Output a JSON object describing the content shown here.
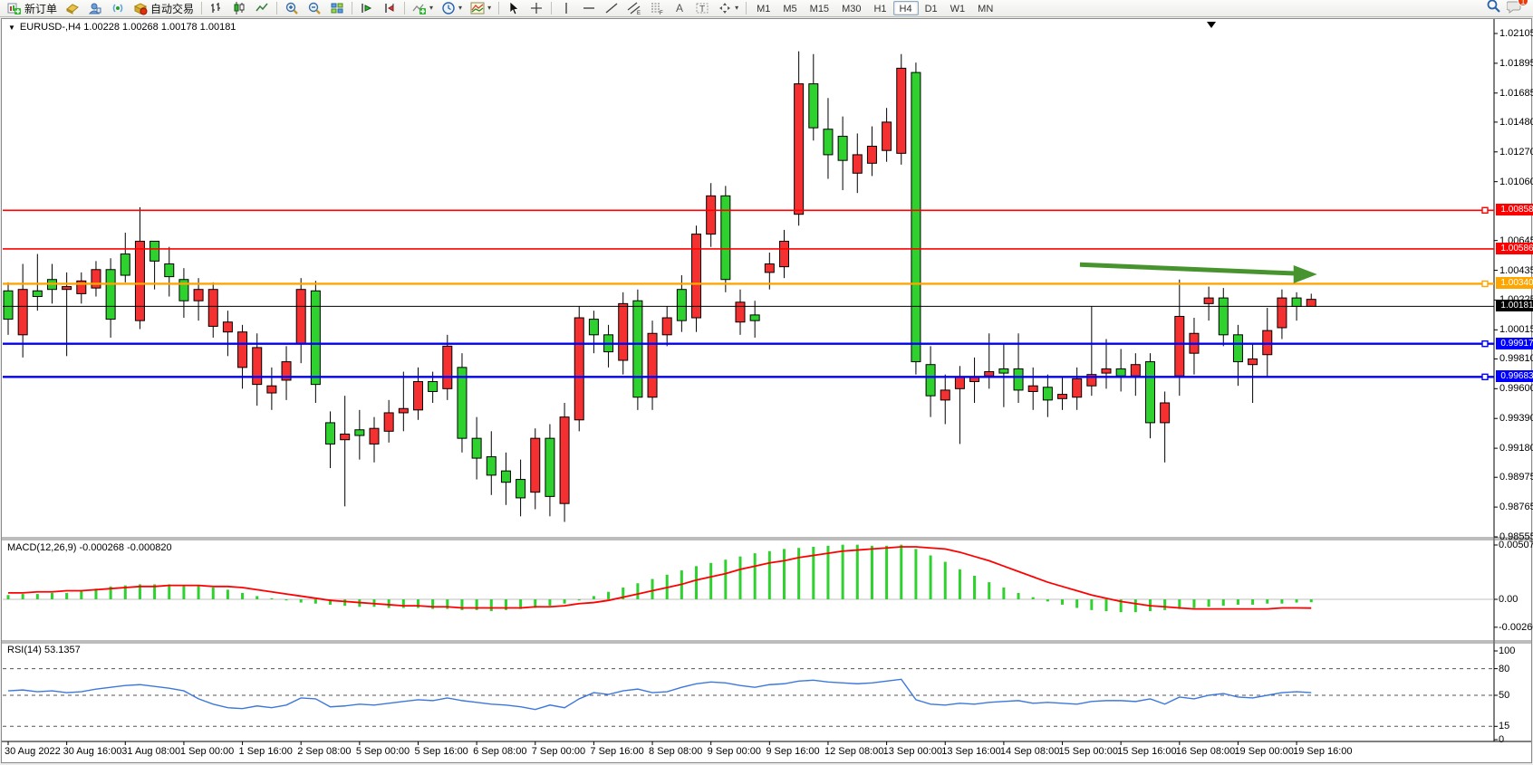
{
  "toolbar": {
    "new_order_label": "新订单",
    "autotrading_label": "自动交易",
    "notification_count": "1",
    "timeframes": [
      "M1",
      "M5",
      "M15",
      "M30",
      "H1",
      "H4",
      "D1",
      "W1",
      "MN"
    ],
    "active_timeframe": "H4"
  },
  "chart": {
    "title": "EURUSD-,H4  1.00228 1.00268 1.00178 1.00181",
    "symbol": "EURUSD-",
    "timeframe": "H4"
  },
  "price_axis": {
    "ticks": [
      "1.02105",
      "1.01895",
      "1.01685",
      "1.01480",
      "1.01270",
      "1.01060",
      "1.00645",
      "1.00435",
      "1.00225",
      "1.00015",
      "0.99810",
      "0.99600",
      "0.99390",
      "0.99180",
      "0.98975",
      "0.98765",
      "0.98555"
    ]
  },
  "levels": [
    {
      "value": "1.00858",
      "price": 1.00858,
      "color": "#ff0000",
      "kind": "resistance",
      "handle": true
    },
    {
      "value": "1.00586",
      "price": 1.00586,
      "color": "#ff0000",
      "kind": "resistance",
      "handle": false
    },
    {
      "value": "1.00340",
      "price": 1.0034,
      "color": "#ffa500",
      "kind": "pivot",
      "handle": true
    },
    {
      "value": "1.00181",
      "price": 1.00181,
      "color": "#000000",
      "kind": "bid",
      "handle": false
    },
    {
      "value": "0.99917",
      "price": 0.99917,
      "color": "#0000ff",
      "kind": "support",
      "handle": true
    },
    {
      "value": "0.99683",
      "price": 0.99683,
      "color": "#0000ff",
      "kind": "support",
      "handle": true
    }
  ],
  "chart_data": {
    "type": "candlestick",
    "title": "EURUSD- H4",
    "current_bar": {
      "open": "1.00228",
      "high": "1.00268",
      "low": "1.00178",
      "close": "1.00181"
    },
    "y_axis": {
      "max": 1.02105,
      "min": 0.98555
    },
    "candle_colors": {
      "up_down_green": "#2ed12e",
      "up_down_red": "#f53030",
      "outline": "#000000"
    },
    "time_labels": [
      "30 Aug 2022",
      "30 Aug 16:00",
      "31 Aug 08:00",
      "1 Sep 00:00",
      "1 Sep 16:00",
      "2 Sep 08:00",
      "5 Sep 00:00",
      "5 Sep 16:00",
      "6 Sep 08:00",
      "7 Sep 00:00",
      "7 Sep 16:00",
      "8 Sep 08:00",
      "9 Sep 00:00",
      "9 Sep 16:00",
      "12 Sep 08:00",
      "13 Sep 00:00",
      "13 Sep 16:00",
      "14 Sep 08:00",
      "15 Sep 00:00",
      "15 Sep 16:00",
      "16 Sep 08:00",
      "19 Sep 00:00",
      "19 Sep 16:00"
    ],
    "candles": [
      [
        1.0029,
        1.0009,
        1.0035,
        0.9998,
        "g"
      ],
      [
        1.003,
        0.9998,
        1.0048,
        0.9982,
        "r"
      ],
      [
        1.0029,
        1.0025,
        1.0055,
        1.0015,
        "g"
      ],
      [
        1.0037,
        1.003,
        1.0048,
        1.002,
        "g"
      ],
      [
        1.0032,
        1.003,
        1.0042,
        0.9983,
        "r"
      ],
      [
        1.0036,
        1.0027,
        1.0042,
        1.002,
        "r"
      ],
      [
        1.0044,
        1.0031,
        1.005,
        1.0025,
        "r"
      ],
      [
        1.0044,
        1.0009,
        1.0052,
        0.9996,
        "g"
      ],
      [
        1.0055,
        1.004,
        1.007,
        1.0035,
        "g"
      ],
      [
        1.0064,
        1.0008,
        1.0088,
        1.0002,
        "r"
      ],
      [
        1.0064,
        1.005,
        1.0064,
        1.003,
        "g"
      ],
      [
        1.0048,
        1.0039,
        1.006,
        1.0025,
        "g"
      ],
      [
        1.0037,
        1.0022,
        1.0045,
        1.001,
        "g"
      ],
      [
        1.003,
        1.0022,
        1.0038,
        1.0008,
        "r"
      ],
      [
        1.003,
        1.0004,
        1.0035,
        0.9996,
        "r"
      ],
      [
        1.0007,
        1.0,
        1.0015,
        0.9983,
        "r"
      ],
      [
        1.0,
        0.9975,
        1.0005,
        0.996,
        "r"
      ],
      [
        0.9989,
        0.9963,
        0.9999,
        0.9948,
        "r"
      ],
      [
        0.9962,
        0.9957,
        0.9975,
        0.9945,
        "r"
      ],
      [
        0.9979,
        0.9966,
        0.999,
        0.9952,
        "r"
      ],
      [
        1.003,
        0.9992,
        1.0038,
        0.9978,
        "r"
      ],
      [
        1.0029,
        0.9963,
        1.0036,
        0.995,
        "g"
      ],
      [
        0.9936,
        0.9921,
        0.9944,
        0.9904,
        "g"
      ],
      [
        0.9928,
        0.9924,
        0.9955,
        0.9877,
        "r"
      ],
      [
        0.9931,
        0.9927,
        0.9945,
        0.991,
        "g"
      ],
      [
        0.9932,
        0.9921,
        0.994,
        0.9908,
        "r"
      ],
      [
        0.9943,
        0.993,
        0.9952,
        0.9922,
        "r"
      ],
      [
        0.9946,
        0.9943,
        0.9972,
        0.993,
        "r"
      ],
      [
        0.9965,
        0.9945,
        0.9975,
        0.9938,
        "r"
      ],
      [
        0.9965,
        0.9958,
        0.9972,
        0.995,
        "g"
      ],
      [
        0.999,
        0.996,
        0.9998,
        0.9952,
        "r"
      ],
      [
        0.9975,
        0.9925,
        0.9985,
        0.9915,
        "g"
      ],
      [
        0.9925,
        0.9911,
        0.994,
        0.9896,
        "g"
      ],
      [
        0.9912,
        0.9899,
        0.993,
        0.9885,
        "g"
      ],
      [
        0.9902,
        0.9894,
        0.9915,
        0.9878,
        "g"
      ],
      [
        0.9896,
        0.9883,
        0.991,
        0.987,
        "g"
      ],
      [
        0.9925,
        0.9887,
        0.9932,
        0.9875,
        "r"
      ],
      [
        0.9925,
        0.9884,
        0.9935,
        0.987,
        "g"
      ],
      [
        0.994,
        0.9879,
        0.995,
        0.9866,
        "r"
      ],
      [
        1.001,
        0.9938,
        1.0018,
        0.993,
        "r"
      ],
      [
        1.0009,
        0.9998,
        1.0015,
        0.9985,
        "g"
      ],
      [
        0.9998,
        0.9986,
        1.0005,
        0.9975,
        "g"
      ],
      [
        1.002,
        0.998,
        1.0028,
        0.997,
        "r"
      ],
      [
        1.0022,
        0.9954,
        1.003,
        0.9945,
        "g"
      ],
      [
        0.9999,
        0.9954,
        1.0008,
        0.9945,
        "r"
      ],
      [
        1.001,
        0.9998,
        1.0018,
        0.999,
        "r"
      ],
      [
        1.003,
        1.0008,
        1.004,
        1.0,
        "g"
      ],
      [
        1.0069,
        1.001,
        1.0075,
        1.0,
        "r"
      ],
      [
        1.0096,
        1.0069,
        1.0105,
        1.006,
        "r"
      ],
      [
        1.0096,
        1.0037,
        1.0103,
        1.0028,
        "g"
      ],
      [
        1.0021,
        1.0007,
        1.003,
        0.9998,
        "r"
      ],
      [
        1.0012,
        1.0008,
        1.0022,
        0.9996,
        "g"
      ],
      [
        1.0048,
        1.0042,
        1.0056,
        1.003,
        "r"
      ],
      [
        1.0064,
        1.0046,
        1.0072,
        1.0038,
        "r"
      ],
      [
        1.0175,
        1.0083,
        1.0198,
        1.0075,
        "r"
      ],
      [
        1.0175,
        1.0144,
        1.0196,
        1.0135,
        "g"
      ],
      [
        1.0143,
        1.0125,
        1.0165,
        1.0108,
        "g"
      ],
      [
        1.0138,
        1.0121,
        1.0152,
        1.01,
        "g"
      ],
      [
        1.0125,
        1.0112,
        1.014,
        1.0098,
        "r"
      ],
      [
        1.0131,
        1.0119,
        1.0145,
        1.011,
        "r"
      ],
      [
        1.0148,
        1.0128,
        1.0158,
        1.012,
        "r"
      ],
      [
        1.0186,
        1.0126,
        1.0196,
        1.0118,
        "r"
      ],
      [
        1.0183,
        0.9979,
        1.019,
        0.997,
        "g"
      ],
      [
        0.9977,
        0.9955,
        0.999,
        0.994,
        "g"
      ],
      [
        0.9959,
        0.9952,
        0.997,
        0.9935,
        "r"
      ],
      [
        0.9968,
        0.996,
        0.9976,
        0.9921,
        "r"
      ],
      [
        0.9968,
        0.9965,
        0.9982,
        0.995,
        "r"
      ],
      [
        0.9972,
        0.9969,
        0.9999,
        0.996,
        "r"
      ],
      [
        0.9974,
        0.9971,
        0.9992,
        0.9947,
        "g"
      ],
      [
        0.9974,
        0.9959,
        0.9999,
        0.995,
        "g"
      ],
      [
        0.9962,
        0.9958,
        0.9975,
        0.9945,
        "r"
      ],
      [
        0.9961,
        0.9952,
        0.997,
        0.994,
        "g"
      ],
      [
        0.9956,
        0.9953,
        0.9968,
        0.9945,
        "r"
      ],
      [
        0.9967,
        0.9954,
        0.9975,
        0.9945,
        "r"
      ],
      [
        0.997,
        0.9962,
        1.0018,
        0.9955,
        "r"
      ],
      [
        0.9974,
        0.9971,
        0.9995,
        0.996,
        "r"
      ],
      [
        0.9974,
        0.9969,
        0.9988,
        0.9958,
        "g"
      ],
      [
        0.9977,
        0.9969,
        0.9985,
        0.9955,
        "r"
      ],
      [
        0.9979,
        0.9936,
        0.9985,
        0.9925,
        "g"
      ],
      [
        0.995,
        0.9936,
        0.9958,
        0.9908,
        "r"
      ],
      [
        1.0011,
        0.9969,
        1.0037,
        0.9955,
        "r"
      ],
      [
        0.9999,
        0.9985,
        1.001,
        0.997,
        "r"
      ],
      [
        1.0024,
        1.002,
        1.0032,
        1.0008,
        "r"
      ],
      [
        1.0024,
        0.9998,
        1.0031,
        0.999,
        "g"
      ],
      [
        0.9998,
        0.9979,
        1.0005,
        0.9962,
        "g"
      ],
      [
        0.9981,
        0.9977,
        0.9992,
        0.995,
        "r"
      ],
      [
        1.0001,
        0.9984,
        1.0017,
        0.9968,
        "r"
      ],
      [
        1.0024,
        1.0003,
        1.003,
        0.9995,
        "r"
      ],
      [
        1.0024,
        1.0018,
        1.0028,
        1.0008,
        "g"
      ],
      [
        1.0023,
        1.0018,
        1.0027,
        1.0018,
        "r"
      ]
    ],
    "indicators": {
      "macd": {
        "label": "MACD(12,26,9)",
        "main_value": "-0.000268",
        "signal_value": "-0.000820",
        "axis_labels": [
          "0.005071",
          "0.00",
          "-0.002606"
        ],
        "axis_values": [
          0.005071,
          0.0,
          -0.002606
        ],
        "hist_color": "#2ed12e",
        "signal_color": "#ff0000",
        "hist": [
          0.0004,
          0.0005,
          0.0005,
          0.0006,
          0.0006,
          0.0008,
          0.001,
          0.0012,
          0.0013,
          0.0014,
          0.0014,
          0.0014,
          0.0013,
          0.0013,
          0.0011,
          0.0009,
          0.0006,
          0.0003,
          0.0001,
          -0.0001,
          -0.0003,
          -0.0004,
          -0.0005,
          -0.0006,
          -0.0007,
          -0.0007,
          -0.0008,
          -0.0008,
          -0.0008,
          -0.0009,
          -0.0009,
          -0.001,
          -0.001,
          -0.0011,
          -0.001,
          -0.0009,
          -0.0008,
          -0.0006,
          -0.0004,
          -0.0001,
          0.0003,
          0.0007,
          0.0011,
          0.0015,
          0.0019,
          0.0023,
          0.0027,
          0.0031,
          0.0034,
          0.0037,
          0.004,
          0.0043,
          0.0045,
          0.0047,
          0.0048,
          0.0049,
          0.005,
          0.0051,
          0.0051,
          0.005,
          0.005,
          0.0051,
          0.0047,
          0.0041,
          0.0035,
          0.0028,
          0.0022,
          0.0016,
          0.0011,
          0.0006,
          0.0002,
          -0.0002,
          -0.0005,
          -0.0008,
          -0.001,
          -0.0011,
          -0.0012,
          -0.0012,
          -0.0011,
          -0.001,
          -0.0009,
          -0.0008,
          -0.0007,
          -0.0006,
          -0.0005,
          -0.0005,
          -0.0004,
          -0.0004,
          -0.0003,
          -0.000268
        ],
        "signal": [
          0.0006,
          0.0006,
          0.0007,
          0.0007,
          0.0008,
          0.0008,
          0.0009,
          0.001,
          0.0011,
          0.0012,
          0.0012,
          0.0013,
          0.0013,
          0.0013,
          0.0012,
          0.0012,
          0.0011,
          0.0009,
          0.0007,
          0.0005,
          0.0003,
          0.0001,
          -0.0001,
          -0.0002,
          -0.0003,
          -0.0004,
          -0.0005,
          -0.0006,
          -0.0006,
          -0.0007,
          -0.0007,
          -0.0008,
          -0.0008,
          -0.0008,
          -0.0008,
          -0.0008,
          -0.0007,
          -0.0007,
          -0.0006,
          -0.0004,
          -0.0003,
          -0.0001,
          0.0002,
          0.0005,
          0.0008,
          0.0011,
          0.0014,
          0.0018,
          0.0021,
          0.0024,
          0.0028,
          0.0031,
          0.0034,
          0.0036,
          0.0039,
          0.0041,
          0.0043,
          0.0045,
          0.0046,
          0.0047,
          0.0048,
          0.0049,
          0.0049,
          0.0048,
          0.0047,
          0.0044,
          0.004,
          0.0036,
          0.0031,
          0.0026,
          0.0021,
          0.0016,
          0.0012,
          0.0008,
          0.0004,
          0.0001,
          -0.0002,
          -0.0004,
          -0.0006,
          -0.0007,
          -0.0008,
          -0.0009,
          -0.0009,
          -0.0009,
          -0.0009,
          -0.0009,
          -0.0009,
          -0.0008,
          -0.0008,
          -0.00082
        ]
      },
      "rsi": {
        "label": "RSI(14)",
        "value": "53.1357",
        "line_color": "#3c78dc",
        "axis_labels": [
          "100",
          "80",
          "50",
          "15",
          "0"
        ],
        "axis_values": [
          100,
          80,
          50,
          15,
          0
        ],
        "dashed_levels": [
          80,
          50,
          15
        ],
        "values": [
          55,
          56,
          54,
          55,
          53,
          54,
          57,
          59,
          61,
          62,
          60,
          58,
          55,
          46,
          40,
          36,
          35,
          38,
          36,
          39,
          47,
          46,
          37,
          38,
          40,
          39,
          41,
          43,
          45,
          44,
          47,
          44,
          42,
          40,
          39,
          37,
          34,
          39,
          36,
          46,
          53,
          51,
          55,
          57,
          53,
          54,
          59,
          63,
          65,
          64,
          61,
          59,
          62,
          63,
          66,
          67,
          65,
          64,
          63,
          64,
          66,
          68,
          45,
          40,
          39,
          41,
          40,
          42,
          43,
          44,
          41,
          42,
          41,
          40,
          43,
          44,
          44,
          43,
          46,
          40,
          48,
          46,
          50,
          52,
          48,
          47,
          50,
          53,
          54,
          53
        ]
      }
    },
    "annotation_arrow": {
      "from_index": 73.2,
      "from_price": 1.00475,
      "to_index": 89.4,
      "to_price": 1.004,
      "color": "#47942f"
    }
  }
}
